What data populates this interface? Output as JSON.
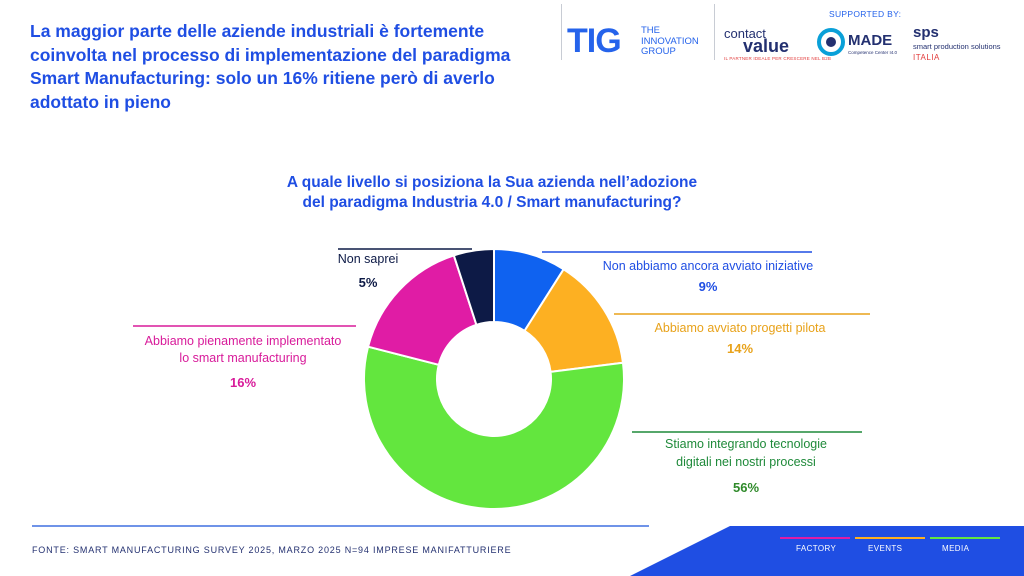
{
  "headline": "La maggior parte delle aziende industriali è fortemente coinvolta nel processo di implementazione del paradigma Smart Manufacturing: solo un 16% ritiene però di averlo adottato in pieno",
  "logos": {
    "tig": "TIG",
    "tig_sub": [
      "THE",
      "INNOVATION",
      "GROUP"
    ],
    "supported_by": "SUPPORTED BY:",
    "contact_top": "contact",
    "contact_main": "value",
    "contact_tag": "IL PARTNER IDEALE PER CRESCERE NEL B2B",
    "made_main": "MADE",
    "made_sub": "Competence Center I4.0",
    "sps_main": "sps",
    "sps_sub": "smart production solutions",
    "sps_country": "ITALIA"
  },
  "question": [
    "A quale livello si posiziona la Sua azienda nell’adozione",
    "del paradigma Industria 4.0 / Smart manufacturing?"
  ],
  "chart_data": {
    "type": "pie",
    "variant": "donut",
    "legend": "none",
    "slices": [
      {
        "label": [
          "Non abbiamo ancora avviato iniziative"
        ],
        "value": 9,
        "value_label": "9%",
        "color": "#0f62f0"
      },
      {
        "label": [
          "Abbiamo avviato progetti pilota"
        ],
        "value": 14,
        "value_label": "14%",
        "color": "#fdb022"
      },
      {
        "label": [
          "Stiamo integrando tecnologie",
          "digitali nei nostri processi"
        ],
        "value": 56,
        "value_label": "56%",
        "color": "#63e63e"
      },
      {
        "label": [
          "Abbiamo pienamente implementato",
          "lo smart manufacturing"
        ],
        "value": 16,
        "value_label": "16%",
        "color": "#e01ca5"
      },
      {
        "label": [
          "Non saprei"
        ],
        "value": 5,
        "value_label": "5%",
        "color": "#0d1a46"
      }
    ]
  },
  "label_colors": {
    "text": [
      "#1f4ee3",
      "#e8a21a",
      "#1f8a3a",
      "#d81b9a",
      "#0d1a46"
    ],
    "value": [
      "#1f4ee3",
      "#e8a21a",
      "#2f8a2a",
      "#d81b9a",
      "#0d1a46"
    ]
  },
  "source": "FONTE: SMART MANUFACTURING SURVEY 2025, MARZO 2025  N=94 IMPRESE MANIFATTURIERE",
  "footer": {
    "tabs": [
      "FACTORY",
      "EVENTS",
      "MEDIA"
    ],
    "band_color": "#1f4ee3",
    "tab_colors": [
      "#e01ca5",
      "#fdb022",
      "#63e63e"
    ]
  }
}
